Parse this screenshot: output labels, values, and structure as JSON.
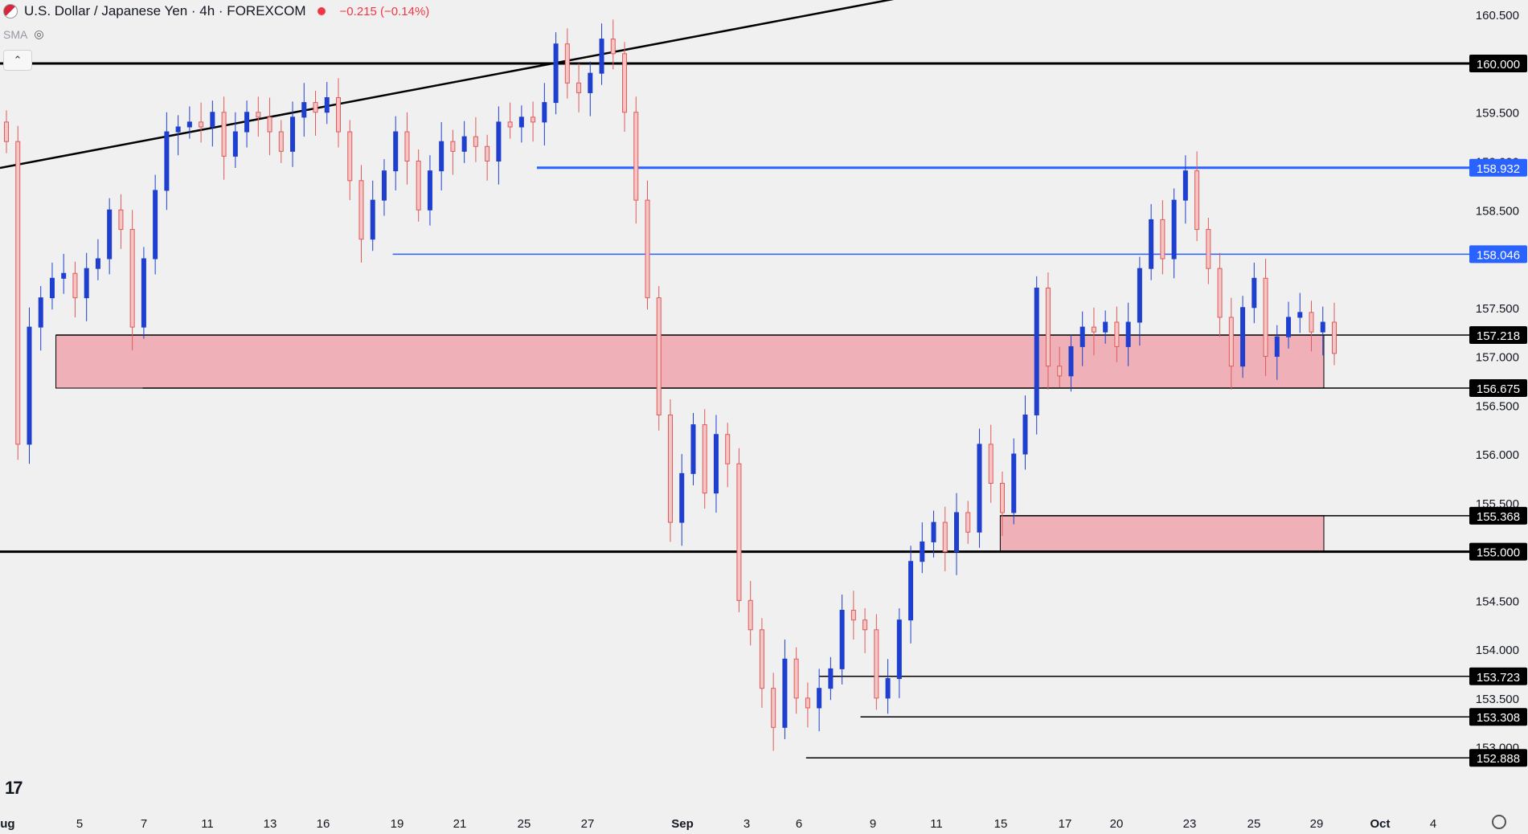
{
  "header": {
    "title": "U.S. Dollar / Japanese Yen · 4h · FOREXCOM",
    "change": "−0.215 (−0.14%)",
    "indicator": "SMA"
  },
  "colors": {
    "up": "#1f3fcf",
    "down": "#e05a5a",
    "zone": "#f0b0b8",
    "blue_level": "#2962ff",
    "black_level": "#000000"
  },
  "chart_data": {
    "type": "candlestick",
    "title": "U.S. Dollar / Japanese Yen · 4h · FOREXCOM",
    "ylim": [
      152.75,
      160.65
    ],
    "y_ticks": [
      {
        "value": 160.5,
        "label": "160.500"
      },
      {
        "value": 159.5,
        "label": "159.500"
      },
      {
        "value": 159.0,
        "label": "159.000"
      },
      {
        "value": 158.5,
        "label": "158.500"
      },
      {
        "value": 157.5,
        "label": "157.500"
      },
      {
        "value": 157.0,
        "label": "157.000"
      },
      {
        "value": 156.5,
        "label": "156.500"
      },
      {
        "value": 156.0,
        "label": "156.000"
      },
      {
        "value": 155.5,
        "label": "155.500"
      },
      {
        "value": 154.5,
        "label": "154.500"
      },
      {
        "value": 154.0,
        "label": "154.000"
      },
      {
        "value": 153.5,
        "label": "153.500"
      },
      {
        "value": 153.0,
        "label": "153.000"
      }
    ],
    "x_labels": [
      "Aug",
      "5",
      "7",
      "11",
      "13",
      "16",
      "19",
      "21",
      "25",
      "27",
      "Sep",
      "3",
      "6",
      "9",
      "11",
      "15",
      "17",
      "20",
      "23",
      "25",
      "29",
      "Oct",
      "4"
    ],
    "levels": [
      {
        "value": 160.0,
        "label": "160.000",
        "color": "black",
        "start": 0
      },
      {
        "value": 158.932,
        "label": "158.932",
        "color": "blue",
        "start": 0.365
      },
      {
        "value": 158.046,
        "label": "158.046",
        "color": "blue",
        "start": 0.267
      },
      {
        "value": 157.218,
        "label": "157.218",
        "color": "black",
        "start": 0.038
      },
      {
        "value": 156.675,
        "label": "156.675",
        "color": "black",
        "start": 0.097
      },
      {
        "value": 155.368,
        "label": "155.368",
        "color": "black",
        "start": 0.68
      },
      {
        "value": 155.0,
        "label": "155.000",
        "color": "black",
        "start": 0
      },
      {
        "value": 153.723,
        "label": "153.723",
        "color": "black",
        "start": 0.557
      },
      {
        "value": 153.308,
        "label": "153.308",
        "color": "black",
        "start": 0.585
      },
      {
        "value": 152.888,
        "label": "152.888",
        "color": "black",
        "start": 0.548
      }
    ],
    "zones": [
      {
        "from": 156.675,
        "to": 157.218,
        "start": 0.038,
        "end": 0.9
      },
      {
        "from": 155.0,
        "to": 155.368,
        "start": 0.68,
        "end": 0.9
      }
    ],
    "trendline": {
      "from": {
        "x": 0,
        "y": 158.93
      },
      "to": {
        "x": 0.713,
        "y": 160.96
      }
    },
    "closes": [
      159.2,
      156.1,
      157.3,
      157.6,
      157.8,
      157.85,
      157.6,
      157.9,
      158.0,
      158.5,
      158.3,
      157.3,
      158.0,
      158.7,
      159.3,
      159.35,
      159.4,
      159.35,
      159.5,
      159.05,
      159.3,
      159.5,
      159.45,
      159.3,
      159.1,
      159.45,
      159.6,
      159.5,
      159.65,
      159.3,
      158.8,
      158.2,
      158.6,
      158.9,
      159.3,
      159.0,
      158.5,
      158.9,
      159.2,
      159.1,
      159.25,
      159.15,
      159.0,
      159.4,
      159.35,
      159.45,
      159.4,
      159.6,
      160.2,
      159.8,
      159.7,
      159.9,
      160.25,
      160.1,
      159.5,
      158.6,
      157.6,
      156.4,
      155.3,
      155.8,
      156.3,
      155.6,
      156.2,
      155.9,
      154.5,
      154.2,
      153.6,
      153.2,
      153.9,
      153.5,
      153.4,
      153.6,
      153.8,
      154.4,
      154.3,
      154.2,
      153.5,
      153.7,
      154.3,
      154.9,
      155.1,
      155.3,
      155.0,
      155.4,
      155.2,
      156.1,
      155.7,
      155.4,
      156.0,
      156.4,
      157.7,
      156.9,
      156.8,
      157.1,
      157.3,
      157.25,
      157.35,
      157.1,
      157.35,
      157.9,
      158.4,
      158.0,
      158.6,
      158.9,
      158.3,
      157.9,
      157.4,
      156.9,
      157.5,
      157.8,
      157.0,
      157.2,
      157.4,
      157.45,
      157.25,
      157.35,
      157.03
    ]
  }
}
